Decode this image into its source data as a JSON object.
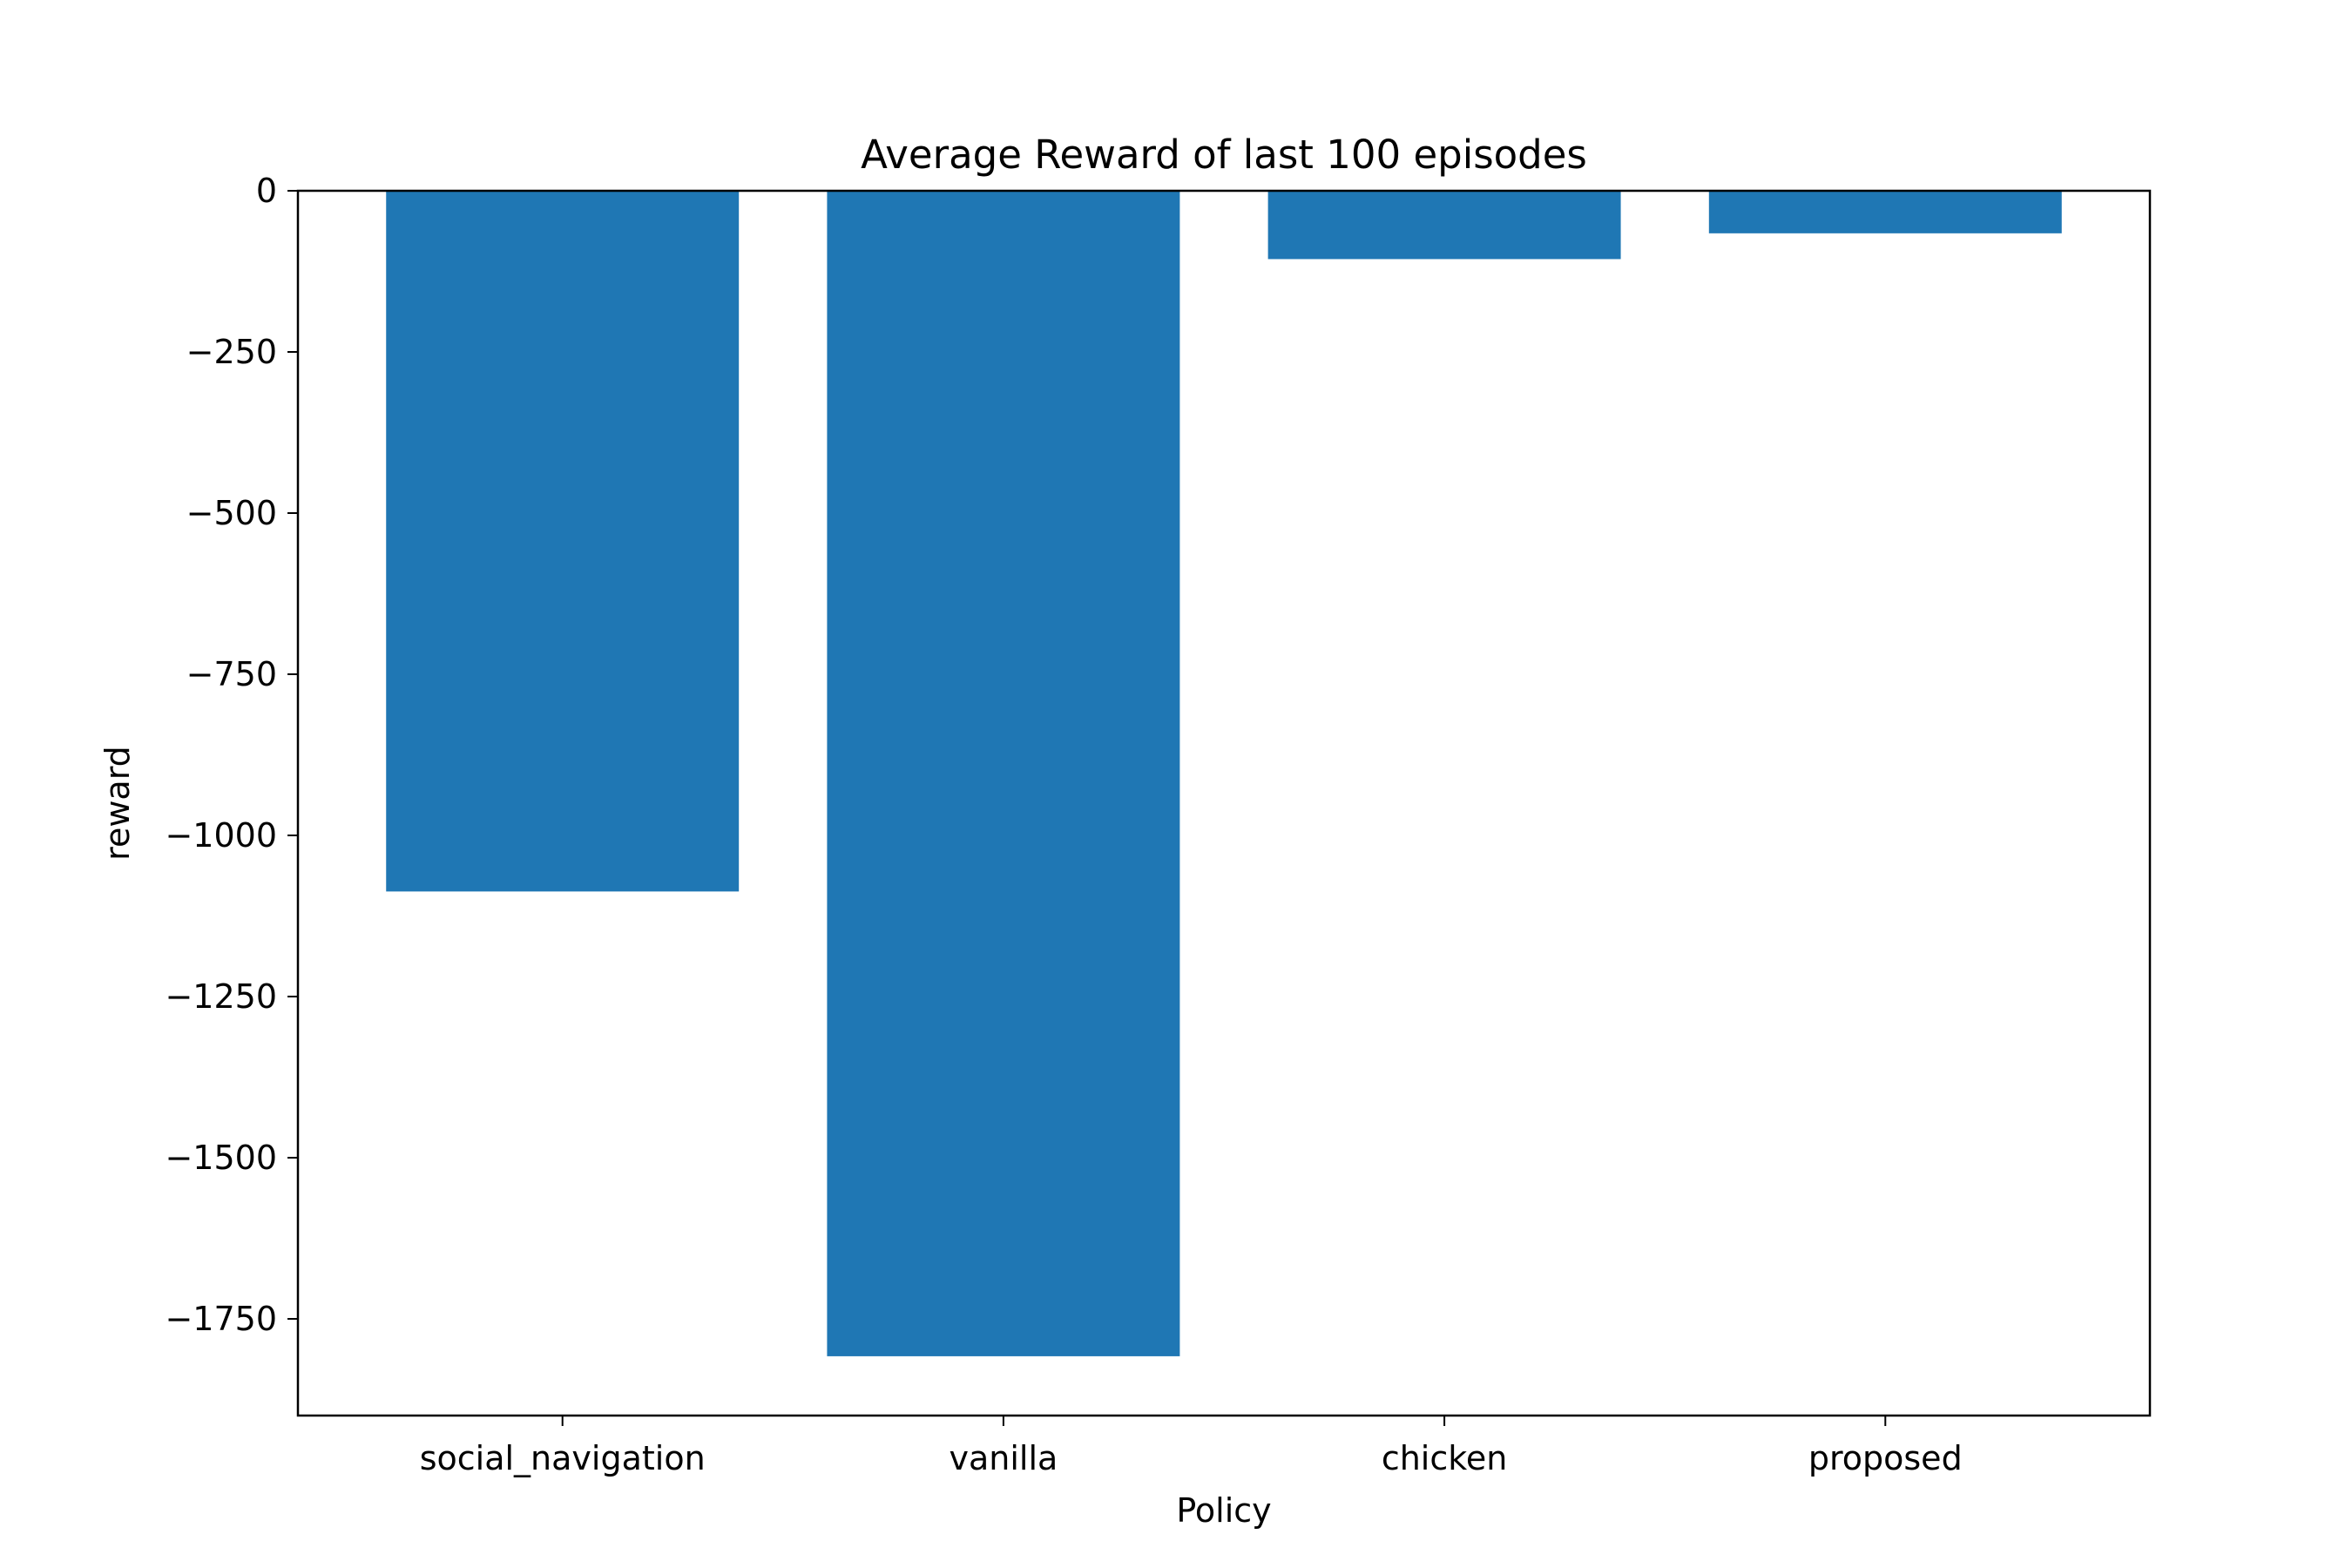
{
  "chart_data": {
    "type": "bar",
    "title": "Average Reward of last 100 episodes",
    "xlabel": "Policy",
    "ylabel": "reward",
    "categories": [
      "social_navigation",
      "vanilla",
      "chicken",
      "proposed"
    ],
    "values": [
      -1087,
      -1808,
      -106,
      -66
    ],
    "ylim": [
      -1900,
      0
    ],
    "yticks": [
      0,
      -250,
      -500,
      -750,
      -1000,
      -1250,
      -1500,
      -1750
    ],
    "ytick_labels": [
      "0",
      "−250",
      "−500",
      "−750",
      "−1000",
      "−1250",
      "−1500",
      "−1750"
    ],
    "bar_color": "#1f77b4",
    "grid": false,
    "legend": "none"
  }
}
